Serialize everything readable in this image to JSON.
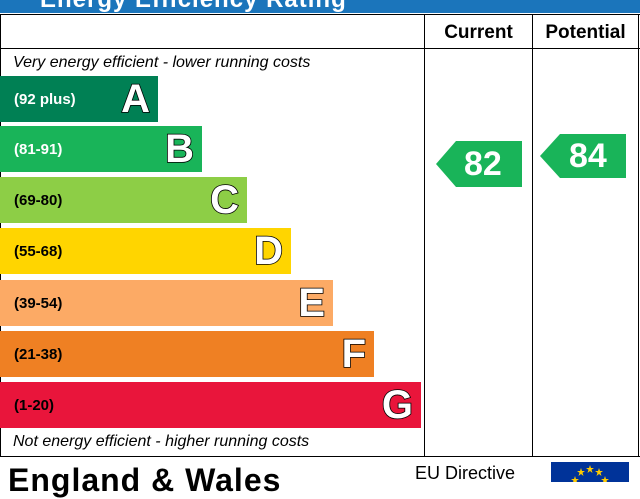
{
  "header": {
    "title": "Energy Efficiency Rating",
    "current_label": "Current",
    "potential_label": "Potential"
  },
  "notes": {
    "top": "Very energy efficient - lower running costs",
    "bottom": "Not energy efficient - higher running costs"
  },
  "chart_data": {
    "type": "bar",
    "title": "Energy Efficiency Rating",
    "categories": [
      "A",
      "B",
      "C",
      "D",
      "E",
      "F",
      "G"
    ],
    "ranges": [
      "(92 plus)",
      "(81-91)",
      "(69-80)",
      "(55-68)",
      "(39-54)",
      "(21-38)",
      "(1-20)"
    ],
    "colors": [
      "#008054",
      "#19b459",
      "#8dce46",
      "#ffd500",
      "#fcaa65",
      "#ef8023",
      "#e9153b"
    ],
    "range_text_colors": [
      "#ffffff",
      "#ffffff",
      "#000000",
      "#000000",
      "#000000",
      "#000000",
      "#000000"
    ],
    "current": {
      "value": "82",
      "band": "B",
      "color": "#19b459"
    },
    "potential": {
      "value": "84",
      "band": "B",
      "color": "#19b459"
    }
  },
  "footer": {
    "region": "England & Wales",
    "directive": "EU Directive"
  }
}
